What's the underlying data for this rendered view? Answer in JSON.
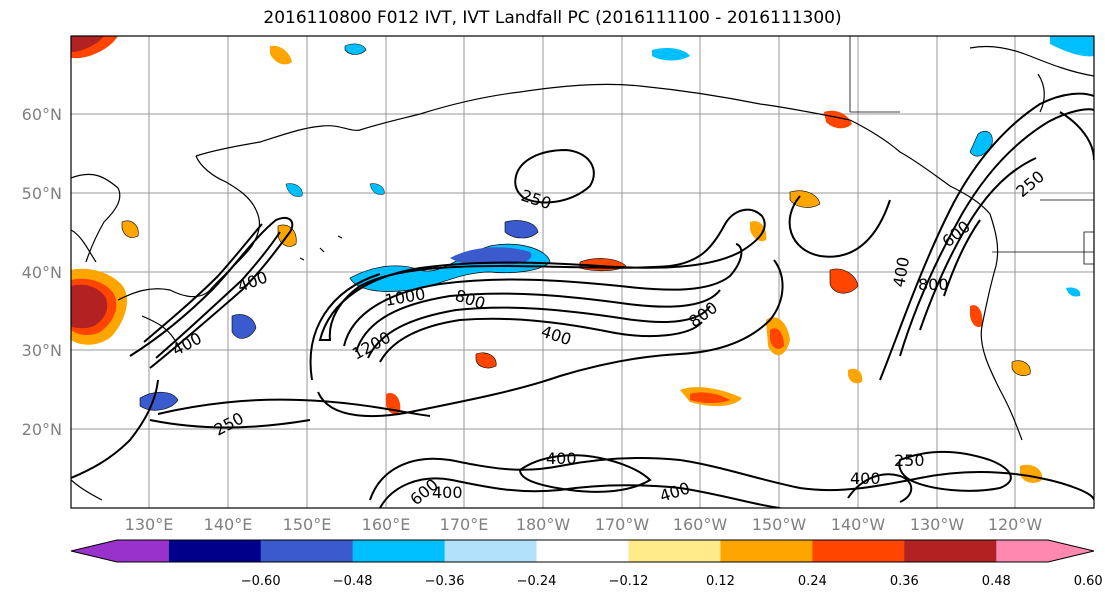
{
  "title": "2016110800 F012 IVT, IVT Landfall PC (2016111100 - 2016111300)",
  "lat_labels": [
    "60°N",
    "50°N",
    "40°N",
    "30°N",
    "20°N"
  ],
  "lon_labels": [
    "130°E",
    "140°E",
    "150°E",
    "160°E",
    "170°E",
    "180°W",
    "170°W",
    "160°W",
    "150°W",
    "140°W",
    "130°W",
    "120°W"
  ],
  "colorbar": {
    "colors": [
      "#9932cc",
      "#00008b",
      "#3a5acd",
      "#00bfff",
      "#b0e0fa",
      "#ffffff",
      "#ffeb8a",
      "#ffa500",
      "#ff4500",
      "#b22222",
      "#ff88b0"
    ],
    "labels": [
      "−0.60",
      "−0.48",
      "−0.36",
      "−0.24",
      "−0.12",
      "0.12",
      "0.24",
      "0.36",
      "0.48",
      "0.60"
    ]
  },
  "contour_labels": [
    "250",
    "250",
    "250",
    "250",
    "400",
    "400",
    "400",
    "400",
    "400",
    "400",
    "400",
    "400",
    "600",
    "600",
    "800",
    "800",
    "800",
    "1000",
    "1200"
  ]
}
